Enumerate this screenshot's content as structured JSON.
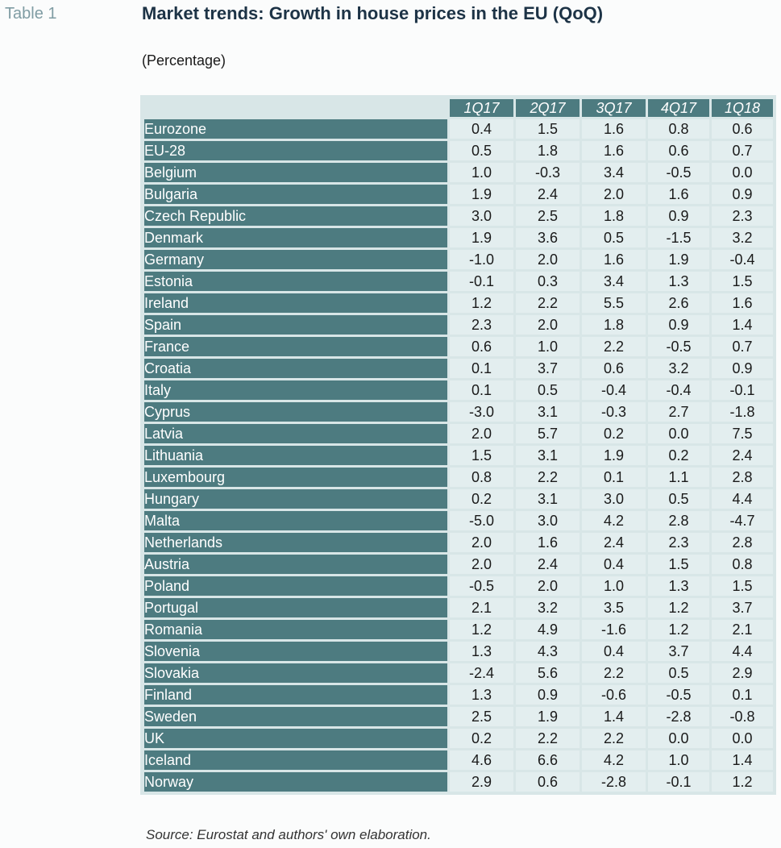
{
  "header": {
    "table_label": "Table 1",
    "title": "Market trends: Growth in house prices in the EU (QoQ)",
    "subtitle": "(Percentage)"
  },
  "footer": {
    "source": "Source: Eurostat and authors' own elaboration."
  },
  "colors": {
    "header_fill": "#4d7b80",
    "cell_fill": "#e3eeef",
    "table_background": "#d8e6e7",
    "title": "#1d3346"
  },
  "chart_data": {
    "type": "table",
    "title": "Market trends: Growth in house prices in the EU (QoQ)",
    "subtitle": "(Percentage)",
    "columns": [
      "1Q17",
      "2Q17",
      "3Q17",
      "4Q17",
      "1Q18"
    ],
    "rows": [
      {
        "label": "Eurozone",
        "values": [
          "0.4",
          "1.5",
          "1.6",
          "0.8",
          "0.6"
        ]
      },
      {
        "label": "EU-28",
        "values": [
          "0.5",
          "1.8",
          "1.6",
          "0.6",
          "0.7"
        ]
      },
      {
        "label": "Belgium",
        "values": [
          "1.0",
          "-0.3",
          "3.4",
          "-0.5",
          "0.0"
        ]
      },
      {
        "label": "Bulgaria",
        "values": [
          "1.9",
          "2.4",
          "2.0",
          "1.6",
          "0.9"
        ]
      },
      {
        "label": "Czech Republic",
        "values": [
          "3.0",
          "2.5",
          "1.8",
          "0.9",
          "2.3"
        ]
      },
      {
        "label": "Denmark",
        "values": [
          "1.9",
          "3.6",
          "0.5",
          "-1.5",
          "3.2"
        ]
      },
      {
        "label": "Germany",
        "values": [
          "-1.0",
          "2.0",
          "1.6",
          "1.9",
          "-0.4"
        ]
      },
      {
        "label": "Estonia",
        "values": [
          "-0.1",
          "0.3",
          "3.4",
          "1.3",
          "1.5"
        ]
      },
      {
        "label": "Ireland",
        "values": [
          "1.2",
          "2.2",
          "5.5",
          "2.6",
          "1.6"
        ]
      },
      {
        "label": "Spain",
        "values": [
          "2.3",
          "2.0",
          "1.8",
          "0.9",
          "1.4"
        ]
      },
      {
        "label": "France",
        "values": [
          "0.6",
          "1.0",
          "2.2",
          "-0.5",
          "0.7"
        ]
      },
      {
        "label": "Croatia",
        "values": [
          "0.1",
          "3.7",
          "0.6",
          "3.2",
          "0.9"
        ]
      },
      {
        "label": "Italy",
        "values": [
          "0.1",
          "0.5",
          "-0.4",
          "-0.4",
          "-0.1"
        ]
      },
      {
        "label": "Cyprus",
        "values": [
          "-3.0",
          "3.1",
          "-0.3",
          "2.7",
          "-1.8"
        ]
      },
      {
        "label": "Latvia",
        "values": [
          "2.0",
          "5.7",
          "0.2",
          "0.0",
          "7.5"
        ]
      },
      {
        "label": "Lithuania",
        "values": [
          "1.5",
          "3.1",
          "1.9",
          "0.2",
          "2.4"
        ]
      },
      {
        "label": "Luxembourg",
        "values": [
          "0.8",
          "2.2",
          "0.1",
          "1.1",
          "2.8"
        ]
      },
      {
        "label": "Hungary",
        "values": [
          "0.2",
          "3.1",
          "3.0",
          "0.5",
          "4.4"
        ]
      },
      {
        "label": "Malta",
        "values": [
          "-5.0",
          "3.0",
          "4.2",
          "2.8",
          "-4.7"
        ]
      },
      {
        "label": "Netherlands",
        "values": [
          "2.0",
          "1.6",
          "2.4",
          "2.3",
          "2.8"
        ]
      },
      {
        "label": "Austria",
        "values": [
          "2.0",
          "2.4",
          "0.4",
          "1.5",
          "0.8"
        ]
      },
      {
        "label": "Poland",
        "values": [
          "-0.5",
          "2.0",
          "1.0",
          "1.3",
          "1.5"
        ]
      },
      {
        "label": "Portugal",
        "values": [
          "2.1",
          "3.2",
          "3.5",
          "1.2",
          "3.7"
        ]
      },
      {
        "label": "Romania",
        "values": [
          "1.2",
          "4.9",
          "-1.6",
          "1.2",
          "2.1"
        ]
      },
      {
        "label": "Slovenia",
        "values": [
          "1.3",
          "4.3",
          "0.4",
          "3.7",
          "4.4"
        ]
      },
      {
        "label": "Slovakia",
        "values": [
          "-2.4",
          "5.6",
          "2.2",
          "0.5",
          "2.9"
        ]
      },
      {
        "label": "Finland",
        "values": [
          "1.3",
          "0.9",
          "-0.6",
          "-0.5",
          "0.1"
        ]
      },
      {
        "label": "Sweden",
        "values": [
          "2.5",
          "1.9",
          "1.4",
          "-2.8",
          "-0.8"
        ]
      },
      {
        "label": "UK",
        "values": [
          "0.2",
          "2.2",
          "2.2",
          "0.0",
          "0.0"
        ]
      },
      {
        "label": "Iceland",
        "values": [
          "4.6",
          "6.6",
          "4.2",
          "1.0",
          "1.4"
        ]
      },
      {
        "label": "Norway",
        "values": [
          "2.9",
          "0.6",
          "-2.8",
          "-0.1",
          "1.2"
        ]
      }
    ]
  }
}
